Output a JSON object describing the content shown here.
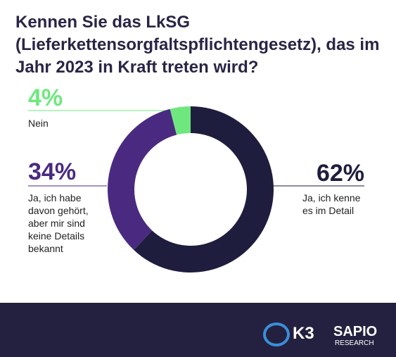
{
  "chart_data": {
    "type": "donut",
    "title": "Kennen Sie das LkSG (Lieferkettensorgfaltspflichtengesetz), das im Jahr 2023 in Kraft treten wird?",
    "categories": [
      "Ja, ich kenne\nes im Detail",
      "Ja, ich habe\ndavon gehört,\naber mir sind\nkeine Details\nbekannt",
      "Nein"
    ],
    "values": [
      62,
      34,
      4
    ],
    "value_labels": [
      "62%",
      "34%",
      "4%"
    ],
    "colors": [
      "#1f1d3d",
      "#4a2a80",
      "#6ee87e"
    ]
  },
  "logos": [
    "K3",
    "SAPIO",
    "RESEARCH"
  ]
}
